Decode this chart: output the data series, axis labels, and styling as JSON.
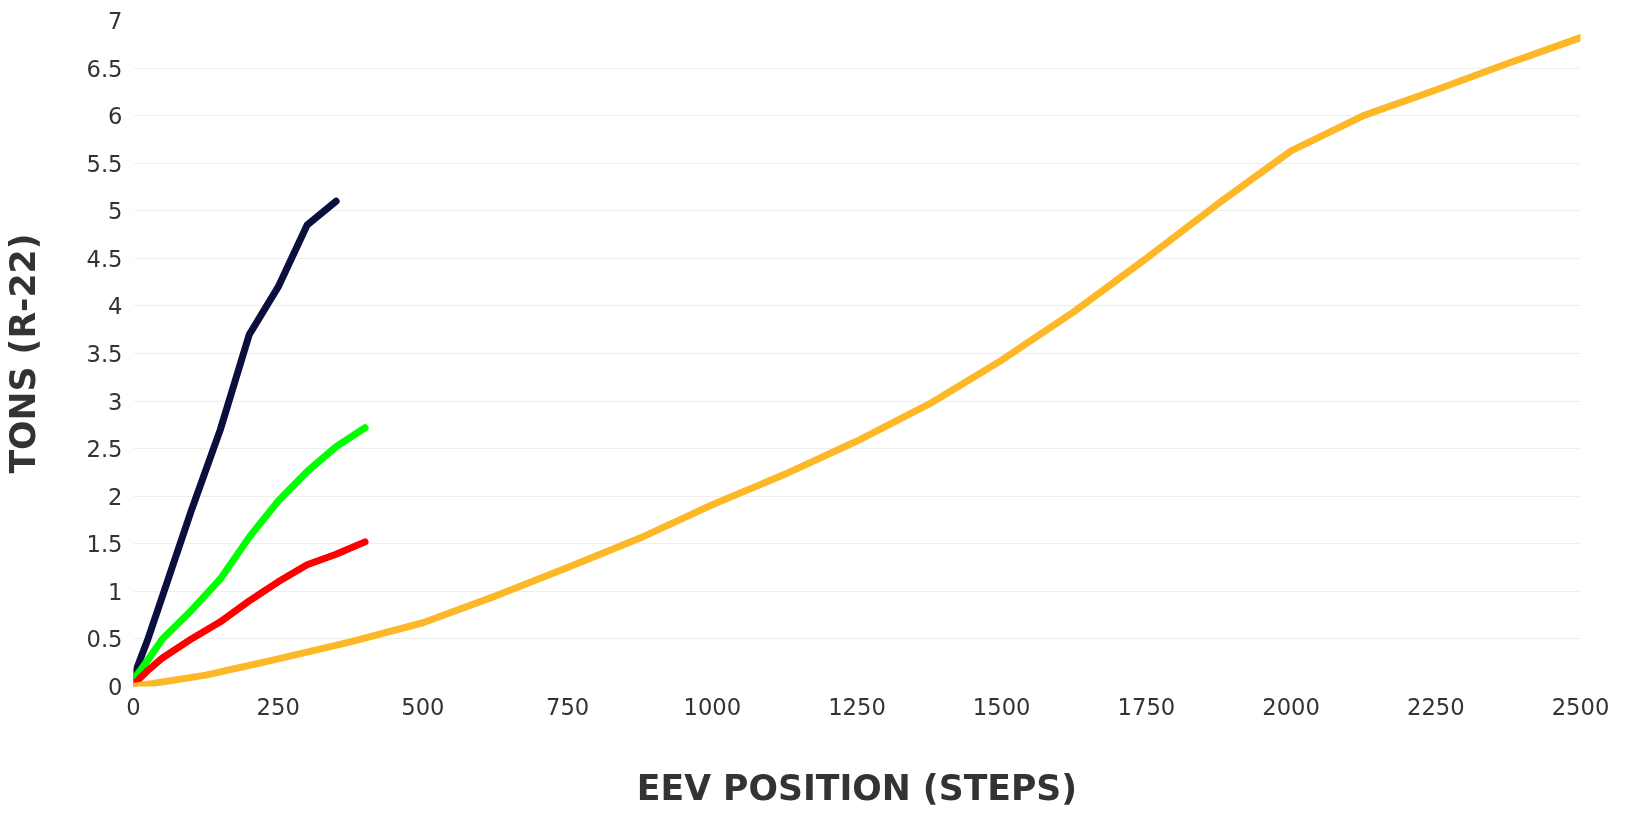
{
  "chart_data": {
    "type": "line",
    "xlabel": "EEV POSITION (STEPS)",
    "ylabel": "TONS (R-22)",
    "xlim": [
      0,
      2500
    ],
    "ylim": [
      0,
      7
    ],
    "xticks": [
      0,
      250,
      500,
      750,
      1000,
      1250,
      1500,
      1750,
      2000,
      2250,
      2500
    ],
    "yticks": [
      0,
      0.5,
      1,
      1.5,
      2,
      2.5,
      3,
      3.5,
      4,
      4.5,
      5,
      5.5,
      6,
      6.5,
      7
    ],
    "grid": "y",
    "marker": "none",
    "line_style": "solid",
    "series": [
      {
        "color": "#0b0f3d",
        "x": [
          0,
          25,
          50,
          100,
          150,
          200,
          250,
          300,
          350
        ],
        "values": [
          0.1,
          0.5,
          0.95,
          1.85,
          2.7,
          3.7,
          4.2,
          4.85,
          5.1
        ]
      },
      {
        "color": "#00ff00",
        "x": [
          0,
          25,
          50,
          100,
          150,
          200,
          250,
          300,
          350,
          400
        ],
        "values": [
          0.07,
          0.28,
          0.5,
          0.8,
          1.13,
          1.57,
          1.95,
          2.26,
          2.52,
          2.72
        ]
      },
      {
        "color": "#ff0000",
        "x": [
          0,
          25,
          50,
          100,
          150,
          200,
          250,
          300,
          350,
          400
        ],
        "values": [
          0.02,
          0.17,
          0.3,
          0.5,
          0.68,
          0.9,
          1.1,
          1.28,
          1.39,
          1.52
        ]
      },
      {
        "color": "#fdb827",
        "x": [
          0,
          125,
          250,
          375,
          500,
          625,
          750,
          875,
          1000,
          1125,
          1250,
          1375,
          1500,
          1625,
          1750,
          1875,
          2000,
          2125,
          2250,
          2375,
          2500
        ],
        "values": [
          0,
          0.12,
          0.29,
          0.47,
          0.67,
          0.95,
          1.25,
          1.56,
          1.91,
          2.23,
          2.58,
          2.97,
          3.43,
          3.94,
          4.5,
          5.08,
          5.63,
          6.0,
          6.27,
          6.55,
          6.82
        ]
      }
    ]
  }
}
